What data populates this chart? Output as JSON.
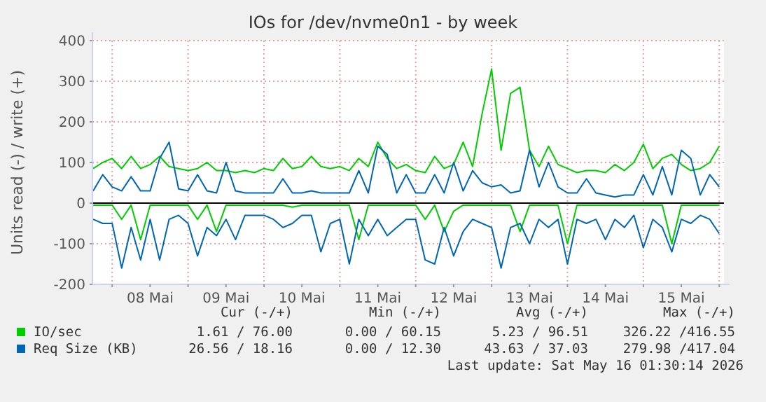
{
  "chart_data": {
    "type": "line",
    "title": "IOs for /dev/nvme0n1 - by week",
    "ylabel": "Units read (-) / write (+)",
    "x": [
      "2026-05-07T18:00",
      "2026-05-07T21:00",
      "2026-05-08T00:00",
      "2026-05-08T03:00",
      "2026-05-08T06:00",
      "2026-05-08T09:00",
      "2026-05-08T12:00",
      "2026-05-08T15:00",
      "2026-05-08T18:00",
      "2026-05-08T21:00",
      "2026-05-09T00:00",
      "2026-05-09T03:00",
      "2026-05-09T06:00",
      "2026-05-09T09:00",
      "2026-05-09T12:00",
      "2026-05-09T15:00",
      "2026-05-09T18:00",
      "2026-05-09T21:00",
      "2026-05-10T00:00",
      "2026-05-10T03:00",
      "2026-05-10T06:00",
      "2026-05-10T09:00",
      "2026-05-10T12:00",
      "2026-05-10T15:00",
      "2026-05-10T18:00",
      "2026-05-10T21:00",
      "2026-05-11T00:00",
      "2026-05-11T03:00",
      "2026-05-11T06:00",
      "2026-05-11T09:00",
      "2026-05-11T12:00",
      "2026-05-11T15:00",
      "2026-05-11T18:00",
      "2026-05-11T21:00",
      "2026-05-12T00:00",
      "2026-05-12T03:00",
      "2026-05-12T06:00",
      "2026-05-12T09:00",
      "2026-05-12T12:00",
      "2026-05-12T15:00",
      "2026-05-12T18:00",
      "2026-05-12T21:00",
      "2026-05-13T00:00",
      "2026-05-13T03:00",
      "2026-05-13T06:00",
      "2026-05-13T09:00",
      "2026-05-13T12:00",
      "2026-05-13T15:00",
      "2026-05-13T18:00",
      "2026-05-13T21:00",
      "2026-05-14T00:00",
      "2026-05-14T03:00",
      "2026-05-14T06:00",
      "2026-05-14T09:00",
      "2026-05-14T12:00",
      "2026-05-14T15:00",
      "2026-05-14T18:00",
      "2026-05-14T21:00",
      "2026-05-15T00:00",
      "2026-05-15T03:00",
      "2026-05-15T06:00",
      "2026-05-15T09:00",
      "2026-05-15T12:00",
      "2026-05-15T15:00",
      "2026-05-15T18:00",
      "2026-05-15T21:00",
      "2026-05-16T00:00"
    ],
    "xlim": [
      "2026-05-07T17:45",
      "2026-05-16T01:30"
    ],
    "xticks": [
      {
        "value": "2026-05-08T00:00",
        "label": null
      },
      {
        "value": "2026-05-08T12:00",
        "label": "08 Mai"
      },
      {
        "value": "2026-05-09T00:00",
        "label": null
      },
      {
        "value": "2026-05-09T12:00",
        "label": "09 Mai"
      },
      {
        "value": "2026-05-10T00:00",
        "label": null
      },
      {
        "value": "2026-05-10T12:00",
        "label": "10 Mai"
      },
      {
        "value": "2026-05-11T00:00",
        "label": null
      },
      {
        "value": "2026-05-11T12:00",
        "label": "11 Mai"
      },
      {
        "value": "2026-05-12T00:00",
        "label": null
      },
      {
        "value": "2026-05-12T12:00",
        "label": "12 Mai"
      },
      {
        "value": "2026-05-13T00:00",
        "label": null
      },
      {
        "value": "2026-05-13T12:00",
        "label": "13 Mai"
      },
      {
        "value": "2026-05-14T00:00",
        "label": null
      },
      {
        "value": "2026-05-14T12:00",
        "label": "14 Mai"
      },
      {
        "value": "2026-05-15T00:00",
        "label": null
      },
      {
        "value": "2026-05-15T12:00",
        "label": "15 Mai"
      },
      {
        "value": "2026-05-16T00:00",
        "label": null
      }
    ],
    "ylim": [
      -200,
      400
    ],
    "yticks": [
      -200,
      -100,
      0,
      100,
      200,
      300,
      400
    ],
    "grid": true,
    "legend": "bottom left",
    "series": [
      {
        "name": "IO/sec",
        "color": "#00cc00",
        "values": [
          85,
          100,
          110,
          85,
          115,
          85,
          95,
          115,
          90,
          85,
          80,
          85,
          100,
          80,
          80,
          75,
          80,
          75,
          85,
          80,
          110,
          85,
          90,
          115,
          90,
          85,
          90,
          80,
          110,
          90,
          150,
          110,
          85,
          95,
          80,
          75,
          115,
          85,
          95,
          150,
          90,
          220,
          330,
          130,
          270,
          285,
          130,
          90,
          140,
          95,
          85,
          75,
          80,
          80,
          75,
          95,
          80,
          100,
          145,
          85,
          110,
          120,
          95,
          80,
          85,
          100,
          140
        ]
      },
      {
        "color": "#00cc00",
        "values": [
          -5,
          -5,
          -5,
          -40,
          -5,
          -90,
          -5,
          -5,
          -5,
          -5,
          -5,
          -40,
          -5,
          -70,
          -5,
          -5,
          -5,
          -5,
          -5,
          -5,
          -5,
          -10,
          -5,
          -5,
          -5,
          -5,
          -5,
          -5,
          -90,
          -5,
          -5,
          -5,
          -5,
          -5,
          -5,
          -40,
          -5,
          -70,
          -20,
          -5,
          -5,
          -5,
          -5,
          -5,
          -5,
          -70,
          -5,
          -5,
          -5,
          -5,
          -100,
          -5,
          -5,
          -5,
          -5,
          -5,
          -5,
          -5,
          -5,
          -5,
          -5,
          -100,
          -5,
          -5,
          -5,
          -5,
          -5
        ]
      },
      {
        "name": "Req Size (KB)",
        "color": "#0066b3",
        "values": [
          30,
          70,
          40,
          30,
          65,
          30,
          30,
          110,
          150,
          35,
          30,
          70,
          30,
          25,
          100,
          30,
          25,
          25,
          25,
          25,
          60,
          25,
          25,
          30,
          25,
          25,
          25,
          25,
          80,
          25,
          140,
          120,
          25,
          70,
          25,
          25,
          70,
          25,
          100,
          30,
          80,
          50,
          40,
          45,
          25,
          30,
          130,
          40,
          100,
          40,
          25,
          25,
          60,
          25,
          20,
          15,
          20,
          20,
          70,
          20,
          90,
          20,
          130,
          110,
          20,
          70,
          40
        ]
      },
      {
        "color": "#0066b3",
        "values": [
          -40,
          -50,
          -50,
          -160,
          -60,
          -140,
          -40,
          -140,
          -40,
          -30,
          -50,
          -130,
          -60,
          -80,
          -40,
          -90,
          -30,
          -30,
          -30,
          -40,
          -60,
          -50,
          -30,
          -30,
          -120,
          -50,
          -40,
          -150,
          -40,
          -80,
          -40,
          -80,
          -60,
          -40,
          -40,
          -140,
          -150,
          -60,
          -130,
          -70,
          -40,
          -50,
          -60,
          -160,
          -60,
          -50,
          -100,
          -40,
          -60,
          -40,
          -150,
          -40,
          -50,
          -40,
          -90,
          -40,
          -60,
          -30,
          -110,
          -40,
          -60,
          -120,
          -40,
          -50,
          -30,
          -40,
          -75
        ]
      }
    ],
    "annotations": [
      "Cur (-/+)",
      "Min (-/+)",
      "Avg (-/+)",
      "Max (-/+)",
      "1.61 / 76.00",
      "0.00 / 60.15",
      "5.23 / 96.51",
      "326.22 /416.55",
      "26.56 / 18.16",
      "0.00 / 12.30",
      "43.63 / 37.03",
      "279.98 /417.04",
      "Last update: Sat May 16 01:30:14 2026"
    ]
  }
}
